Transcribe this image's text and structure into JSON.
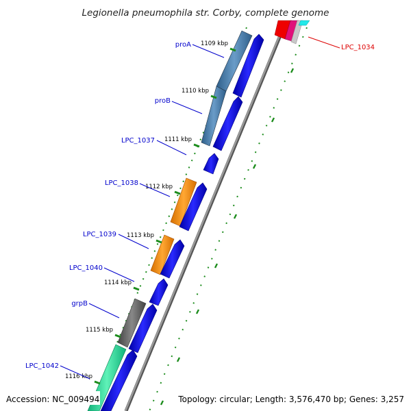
{
  "title": "Legionella pneumophila str. Corby, complete genome",
  "footer": {
    "accession": "Accession: NC_009494",
    "summary": "Topology: circular; Length: 3,576,470 bp; Genes: 3,257"
  },
  "colors": {
    "forward_gene": "#0000ee",
    "backbone": "#8c8c8c",
    "gc_skew": "#1c8c1c",
    "label_blue": "#0000cc",
    "label_red": "#dd0000"
  },
  "scale_ticks": [
    {
      "label": "1109 kbp"
    },
    {
      "label": "1110 kbp"
    },
    {
      "label": "1111 kbp"
    },
    {
      "label": "1112 kbp"
    },
    {
      "label": "1113 kbp"
    },
    {
      "label": "1114 kbp"
    },
    {
      "label": "1115 kbp"
    },
    {
      "label": "1116 kbp"
    }
  ],
  "gene_labels": [
    {
      "name": "proA",
      "color": "#0000cc"
    },
    {
      "name": "proB",
      "color": "#0000cc"
    },
    {
      "name": "LPC_1037",
      "color": "#0000cc"
    },
    {
      "name": "LPC_1038",
      "color": "#0000cc"
    },
    {
      "name": "LPC_1039",
      "color": "#0000cc"
    },
    {
      "name": "LPC_1040",
      "color": "#0000cc"
    },
    {
      "name": "grpB",
      "color": "#0000cc"
    },
    {
      "name": "LPC_1042",
      "color": "#0000cc"
    },
    {
      "name": "LPC_1034",
      "color": "#dd0000"
    }
  ]
}
